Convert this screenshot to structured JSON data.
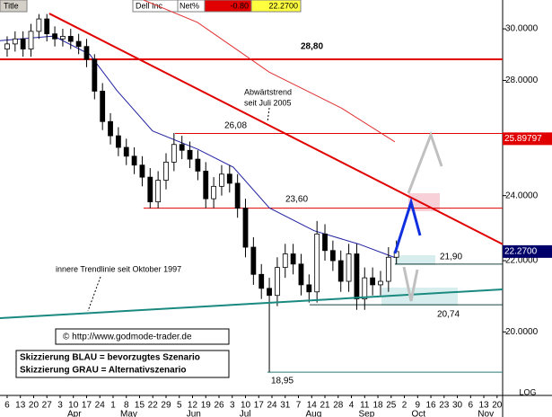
{
  "header": {
    "title": "Title",
    "name": "Dell Inc",
    "field": "Net%",
    "change": "-0.80",
    "last": "22.2700"
  },
  "chart_data": {
    "type": "candlestick",
    "log_scale": true,
    "scale_label": "LOG",
    "xlim": [
      -2.7,
      187.1
    ],
    "ylim": [
      18.37,
      31.18
    ],
    "yticks": [
      {
        "value": 20,
        "label": "20.0000"
      },
      {
        "value": 22,
        "label": "22.0000"
      },
      {
        "value": 24,
        "label": "24.0000"
      },
      {
        "value": 28,
        "label": "28.0000"
      },
      {
        "value": 30,
        "label": "30.0000"
      }
    ],
    "xtick_labels": [
      "6",
      "13",
      "20",
      "27",
      "3",
      "10",
      "17",
      "24",
      "1",
      "8",
      "15",
      "22",
      "29",
      "5",
      "12",
      "19",
      "26",
      "3",
      "10",
      "17",
      "24",
      "31",
      "7",
      "14",
      "21",
      "28",
      "4",
      "11",
      "18",
      "25",
      "2",
      "9",
      "16",
      "23",
      "30",
      "6",
      "13",
      "20"
    ],
    "months": [
      "Apr",
      "May",
      "Jun",
      "Jul",
      "Aug",
      "Sep",
      "Oct",
      "Nov"
    ],
    "color_up": "#ffffff",
    "color_down": "#000000",
    "x": [
      0,
      3,
      6,
      9,
      12,
      15,
      18,
      21,
      24,
      27,
      30,
      33,
      36,
      39,
      42,
      45,
      48,
      51,
      54,
      57,
      60,
      63,
      66,
      69,
      72,
      75,
      78,
      81,
      84,
      87,
      90,
      93,
      96,
      99,
      102,
      105,
      108,
      111,
      114,
      117,
      120,
      123,
      126,
      129,
      132,
      135,
      138,
      141,
      144,
      147
    ],
    "open": [
      29.2,
      29.4,
      29.6,
      29.2,
      29.9,
      30.4,
      29.8,
      29.6,
      29.7,
      29.5,
      29.3,
      28.8,
      27.6,
      26.5,
      26.0,
      25.6,
      25.3,
      25.0,
      24.6,
      23.8,
      24.5,
      25.1,
      25.7,
      25.5,
      25.2,
      24.8,
      23.9,
      24.3,
      24.7,
      24.4,
      23.6,
      22.4,
      21.6,
      21.2,
      21.0,
      21.8,
      22.2,
      21.9,
      21.3,
      21.1,
      22.8,
      22.3,
      22.0,
      21.4,
      22.2,
      20.9,
      21.5,
      21.3,
      21.4,
      22.1
    ],
    "high": [
      29.7,
      29.9,
      29.9,
      30.2,
      30.6,
      30.6,
      30.1,
      30.0,
      30.0,
      29.8,
      29.6,
      29.0,
      27.9,
      26.8,
      26.3,
      25.9,
      25.6,
      25.3,
      24.9,
      24.8,
      25.4,
      26.1,
      26.0,
      25.8,
      25.5,
      25.1,
      24.6,
      25.0,
      25.0,
      24.7,
      23.9,
      22.7,
      21.9,
      21.5,
      22.1,
      22.5,
      22.5,
      22.2,
      21.6,
      23.2,
      23.1,
      22.6,
      22.3,
      22.5,
      22.5,
      21.8,
      21.8,
      21.7,
      22.4,
      22.6
    ],
    "low": [
      28.9,
      29.1,
      28.9,
      28.9,
      29.6,
      29.5,
      29.3,
      29.3,
      29.2,
      29.0,
      28.5,
      27.3,
      26.2,
      25.7,
      25.3,
      25.0,
      24.7,
      24.3,
      23.6,
      23.6,
      24.2,
      24.8,
      25.2,
      24.9,
      24.5,
      23.6,
      23.6,
      24.0,
      24.1,
      23.3,
      22.1,
      21.3,
      20.9,
      18.95,
      20.7,
      21.5,
      21.6,
      21.0,
      20.8,
      20.8,
      22.0,
      21.7,
      21.1,
      21.1,
      20.6,
      20.6,
      21.0,
      21.0,
      21.1,
      21.9
    ],
    "close": [
      29.4,
      29.6,
      29.2,
      29.9,
      30.4,
      29.8,
      29.6,
      29.7,
      29.5,
      29.3,
      28.8,
      27.6,
      26.5,
      26.0,
      25.6,
      25.3,
      25.0,
      24.6,
      23.8,
      24.5,
      25.1,
      25.7,
      25.5,
      25.2,
      24.8,
      23.9,
      24.3,
      24.7,
      24.4,
      23.6,
      22.4,
      21.6,
      21.2,
      21.0,
      21.8,
      22.2,
      21.9,
      21.3,
      21.1,
      22.8,
      22.3,
      22.0,
      21.4,
      22.2,
      20.9,
      21.5,
      21.3,
      21.4,
      22.1,
      22.27
    ],
    "overlays": [
      {
        "color": "#2020a0",
        "x": [
          -2.7,
          17.6,
          31.2,
          41.4,
          54.9,
          71.9,
          85.4,
          99.0,
          115.9,
          132.9,
          146.4
        ],
        "values": [
          29.53,
          29.71,
          28.99,
          27.63,
          26.17,
          25.54,
          24.93,
          23.61,
          22.9,
          22.49,
          22.09
        ]
      },
      {
        "color": "#e03030",
        "x": [
          51.5,
          71.9,
          99.0,
          126.1,
          146.4
        ],
        "values": [
          31.18,
          30.26,
          28.31,
          26.99,
          25.79
        ]
      }
    ],
    "trendlines": [
      {
        "color": "#e00000",
        "x": [
          15.9,
          187.1
        ],
        "values": [
          30.62,
          22.49
        ]
      },
      {
        "color": "#1a8a80",
        "x": [
          -2.7,
          187.1
        ],
        "values": [
          20.37,
          21.17
        ]
      }
    ],
    "levels": [
      {
        "value": 28.8,
        "label": "28,80",
        "x": -2.7,
        "color": "#e00000"
      },
      {
        "value": 26.08,
        "label": "26,08",
        "x": 63.4,
        "color": "#e00000"
      },
      {
        "value": 23.6,
        "label": "23,60",
        "x": 51.5,
        "color": "#e00000"
      },
      {
        "value": 21.9,
        "label": "21,90",
        "x": 146.4,
        "color": "#1a4040"
      },
      {
        "value": 20.74,
        "label": "20,74",
        "x": 114.2,
        "color": "#1a4040"
      },
      {
        "value": 18.95,
        "label": "18,95",
        "x": 98.3,
        "color": "#2a7a7a"
      }
    ],
    "markers": [
      {
        "value": 25.89797,
        "label": "25.89797",
        "color": "#e00000"
      },
      {
        "value": 22.27,
        "label": "22.2700",
        "color": "#00006a"
      }
    ],
    "annotations": {
      "downtrend": [
        "Abwärtstrend",
        "seit Juli 2005"
      ],
      "inner": "innere Trendlinie seit Oktober 1997",
      "copyright": "© http://www.godmode-trader.de",
      "legend": [
        "Skizzierung BLAU = bevorzugtes Szenario",
        "Skizzierung GRAU = Alternativszenario"
      ]
    }
  }
}
